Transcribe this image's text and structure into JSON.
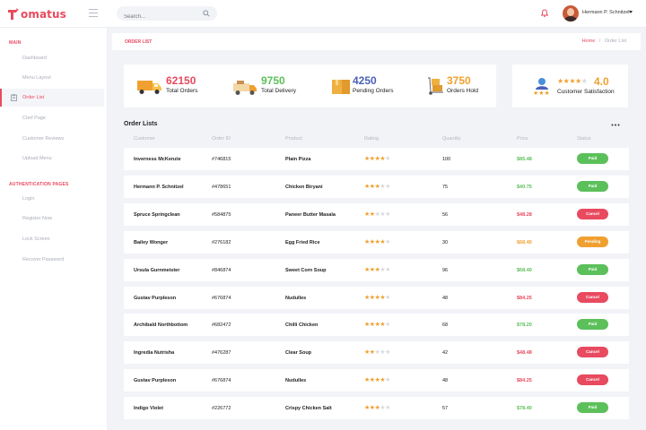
{
  "app": {
    "name": "omatus",
    "colors": {
      "accent": "#e84a5f",
      "green": "#5cc05a",
      "orange": "#f0a030",
      "red": "#e84a5f",
      "blue": "#4a5fb8"
    }
  },
  "topbar": {
    "search_placeholder": "Search...",
    "user_name": "Hermann P. Schnitzel"
  },
  "sidebar": {
    "section_main": "MAIN",
    "main_items": [
      "Dashboard",
      "Menu Layout",
      "Order List",
      "Chef Page",
      "Customer Reviews",
      "Upload Menu"
    ],
    "section_auth": "AUTHENTICATION PAGES",
    "auth_items": [
      "Login",
      "Register Now",
      "Lock Screen",
      "Recover Password"
    ]
  },
  "header": {
    "title": "ORDER LIST",
    "breadcrumb_home": "Home",
    "breadcrumb_sep": "/",
    "breadcrumb_current": "Order List"
  },
  "stats": [
    {
      "value": "62150",
      "label": "Total Orders",
      "color": "#e84a5f",
      "icon": "truck-icon"
    },
    {
      "value": "9750",
      "label": "Total Delivery",
      "color": "#5cc05a",
      "icon": "delivery-van-icon"
    },
    {
      "value": "4250",
      "label": "Pending Orders",
      "color": "#4a5fb8",
      "icon": "boxes-icon"
    },
    {
      "value": "3750",
      "label": "Orders Hold",
      "color": "#f0a030",
      "icon": "hand-truck-icon"
    }
  ],
  "satisfaction": {
    "value": "4.0",
    "label": "Customer Satisfaction",
    "rating": 4
  },
  "orders": {
    "title": "Order Lists",
    "columns": [
      "Customer",
      "Order ID",
      "Product",
      "Rating",
      "Quantity",
      "Price",
      "Status"
    ],
    "rows": [
      {
        "customer": "Inverness McKenzie",
        "order_id": "#746815",
        "product": "Plain Pizza",
        "rating": 4,
        "quantity": "100",
        "price": "$85.48",
        "status": "Paid"
      },
      {
        "customer": "Hermann P. Schnitzel",
        "order_id": "#478651",
        "product": "Chicken Biryani",
        "rating": 3,
        "quantity": "75",
        "price": "$40.75",
        "status": "Paid"
      },
      {
        "customer": "Spruce Springclean",
        "order_id": "#584875",
        "product": "Paneer Butter Masala",
        "rating": 2,
        "quantity": "56",
        "price": "$48.28",
        "status": "Cancel"
      },
      {
        "customer": "Bailey Wonger",
        "order_id": "#276182",
        "product": "Egg Fried Rice",
        "rating": 4,
        "quantity": "30",
        "price": "$68.40",
        "status": "Pending"
      },
      {
        "customer": "Ursula Gurnmeister",
        "order_id": "#846874",
        "product": "Sweet Corn Soup",
        "rating": 3,
        "quantity": "96",
        "price": "$68.40",
        "status": "Paid"
      },
      {
        "customer": "Gustav Purpleson",
        "order_id": "#676874",
        "product": "Nudulles",
        "rating": 4,
        "quantity": "48",
        "price": "$84.25",
        "status": "Cancel"
      },
      {
        "customer": "Archibald Northbottom",
        "order_id": "#682472",
        "product": "Chilli Chicken",
        "rating": 4,
        "quantity": "68",
        "price": "$78.20",
        "status": "Paid"
      },
      {
        "customer": "Ingredia Nutrisha",
        "order_id": "#476287",
        "product": "Clear Soup",
        "rating": 2,
        "quantity": "42",
        "price": "$48.48",
        "status": "Cancel"
      },
      {
        "customer": "Gustav Purpleson",
        "order_id": "#676874",
        "product": "Nudulles",
        "rating": 4,
        "quantity": "48",
        "price": "$84.25",
        "status": "Cancel"
      },
      {
        "customer": "Indigo Violet",
        "order_id": "#226772",
        "product": "Crispy Chicken Salt",
        "rating": 3,
        "quantity": "57",
        "price": "$78.40",
        "status": "Paid"
      }
    ]
  }
}
